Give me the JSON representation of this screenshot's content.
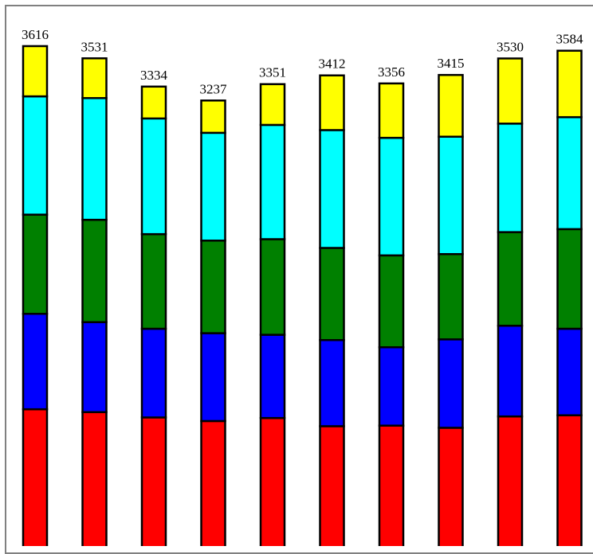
{
  "chart_data": {
    "type": "bar",
    "stacked": true,
    "title": "",
    "xlabel": "",
    "ylabel": "",
    "ylim": [
      0,
      3660
    ],
    "grid": false,
    "legend": "none",
    "series": [
      {
        "color": "#ff0000",
        "values": [
          1086,
          1066,
          1029,
          1004,
          1025,
          968,
          972,
          957,
          1036,
          1044
        ]
      },
      {
        "color": "#0000ff",
        "values": [
          665,
          627,
          618,
          612,
          580,
          600,
          546,
          616,
          632,
          603
        ]
      },
      {
        "color": "#008000",
        "values": [
          691,
          713,
          659,
          645,
          666,
          642,
          640,
          594,
          652,
          694
        ]
      },
      {
        "color": "#00ffff",
        "values": [
          824,
          848,
          806,
          751,
          796,
          821,
          819,
          818,
          756,
          780
        ]
      },
      {
        "color": "#ffff00",
        "values": [
          350,
          277,
          222,
          225,
          284,
          381,
          379,
          430,
          454,
          463
        ]
      }
    ],
    "totals": [
      "3616",
      "3531",
      "3334",
      "3237",
      "3351",
      "3412",
      "3356",
      "3415",
      "3530",
      "3584"
    ]
  }
}
